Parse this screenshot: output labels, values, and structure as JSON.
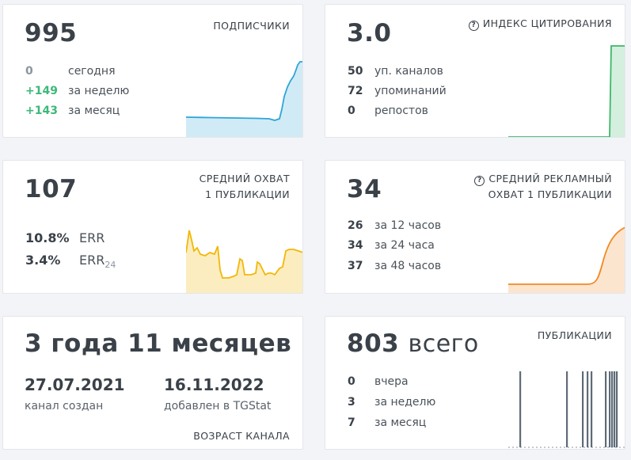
{
  "subscribers": {
    "value": "995",
    "label": "ПОДПИСЧИКИ",
    "rows": [
      {
        "num": "0",
        "text": "сегодня"
      },
      {
        "num": "+149",
        "text": "за неделю"
      },
      {
        "num": "+143",
        "text": "за месяц"
      }
    ],
    "color": "#2ea6d6"
  },
  "citation": {
    "value": "3.0",
    "label": "ИНДЕКС ЦИТИРОВАНИЯ",
    "info_icon": "info-icon",
    "rows": [
      {
        "num": "50",
        "text": "уп. каналов"
      },
      {
        "num": "72",
        "text": "упоминаний"
      },
      {
        "num": "0",
        "text": "репостов"
      }
    ],
    "color": "#3db86a"
  },
  "reach": {
    "value": "107",
    "label_line1": "СРЕДНИЙ ОХВАТ",
    "label_line2": "1 ПУБЛИКАЦИИ",
    "err_value": "10.8%",
    "err_label": "ERR",
    "err24_value": "3.4%",
    "err24_label": "ERR",
    "err24_sub": "24",
    "color": "#f2b705"
  },
  "ad_reach": {
    "value": "34",
    "label_line1": "СРЕДНИЙ РЕКЛАМНЫЙ",
    "label_line2": "ОХВАТ 1 ПУБЛИКАЦИИ",
    "info_icon": "info-icon",
    "rows": [
      {
        "num": "26",
        "text": "за 12 часов"
      },
      {
        "num": "34",
        "text": "за 24 часа"
      },
      {
        "num": "37",
        "text": "за 48 часов"
      }
    ],
    "color": "#f08a24"
  },
  "age": {
    "value": "3 года 11 месяцев",
    "created_date": "27.07.2021",
    "created_caption": "канал создан",
    "added_date": "16.11.2022",
    "added_caption": "добавлен в TGStat",
    "label": "ВОЗРАСТ КАНАЛА"
  },
  "posts": {
    "value": "803",
    "value_suffix": "всего",
    "label": "ПУБЛИКАЦИИ",
    "rows": [
      {
        "num": "0",
        "text": "вчера"
      },
      {
        "num": "3",
        "text": "за неделю"
      },
      {
        "num": "7",
        "text": "за месяц"
      }
    ],
    "color": "#5f6b78"
  }
}
